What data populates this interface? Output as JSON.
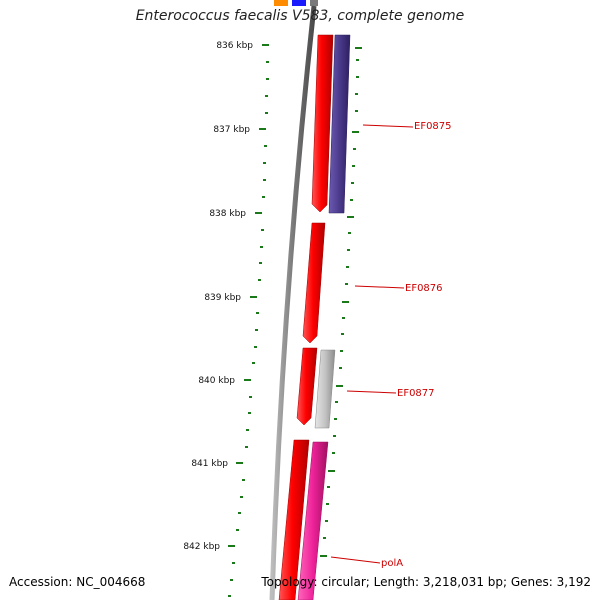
{
  "map": {
    "title": "Enterococcus faecalis V583, complete genome",
    "accession_label": "Accession: NC_004668",
    "topology_label": "Topology: circular; Length: 3,218,031 bp; Genes: 3,192"
  },
  "ruler": {
    "ticks": [
      "836 kbp",
      "837 kbp",
      "838 kbp",
      "839 kbp",
      "840 kbp",
      "841 kbp",
      "842 kbp"
    ]
  },
  "genes": [
    {
      "name": "EF0875",
      "color": "#ee0000",
      "partner_color": "#4b3a8c"
    },
    {
      "name": "EF0876",
      "color": "#ee0000"
    },
    {
      "name": "EF0877",
      "color": "#ee0000",
      "partner_color": "#bfbfbf"
    },
    {
      "name": "polA",
      "color": "#ee0000",
      "partner_color": "#ee2299"
    }
  ],
  "colors": {
    "backbone": "#7a7a7a",
    "tick": "#1a7a1a",
    "gene_label": "#cc0000",
    "top_orange": "#ff8c00",
    "top_blue": "#1a1aff"
  }
}
